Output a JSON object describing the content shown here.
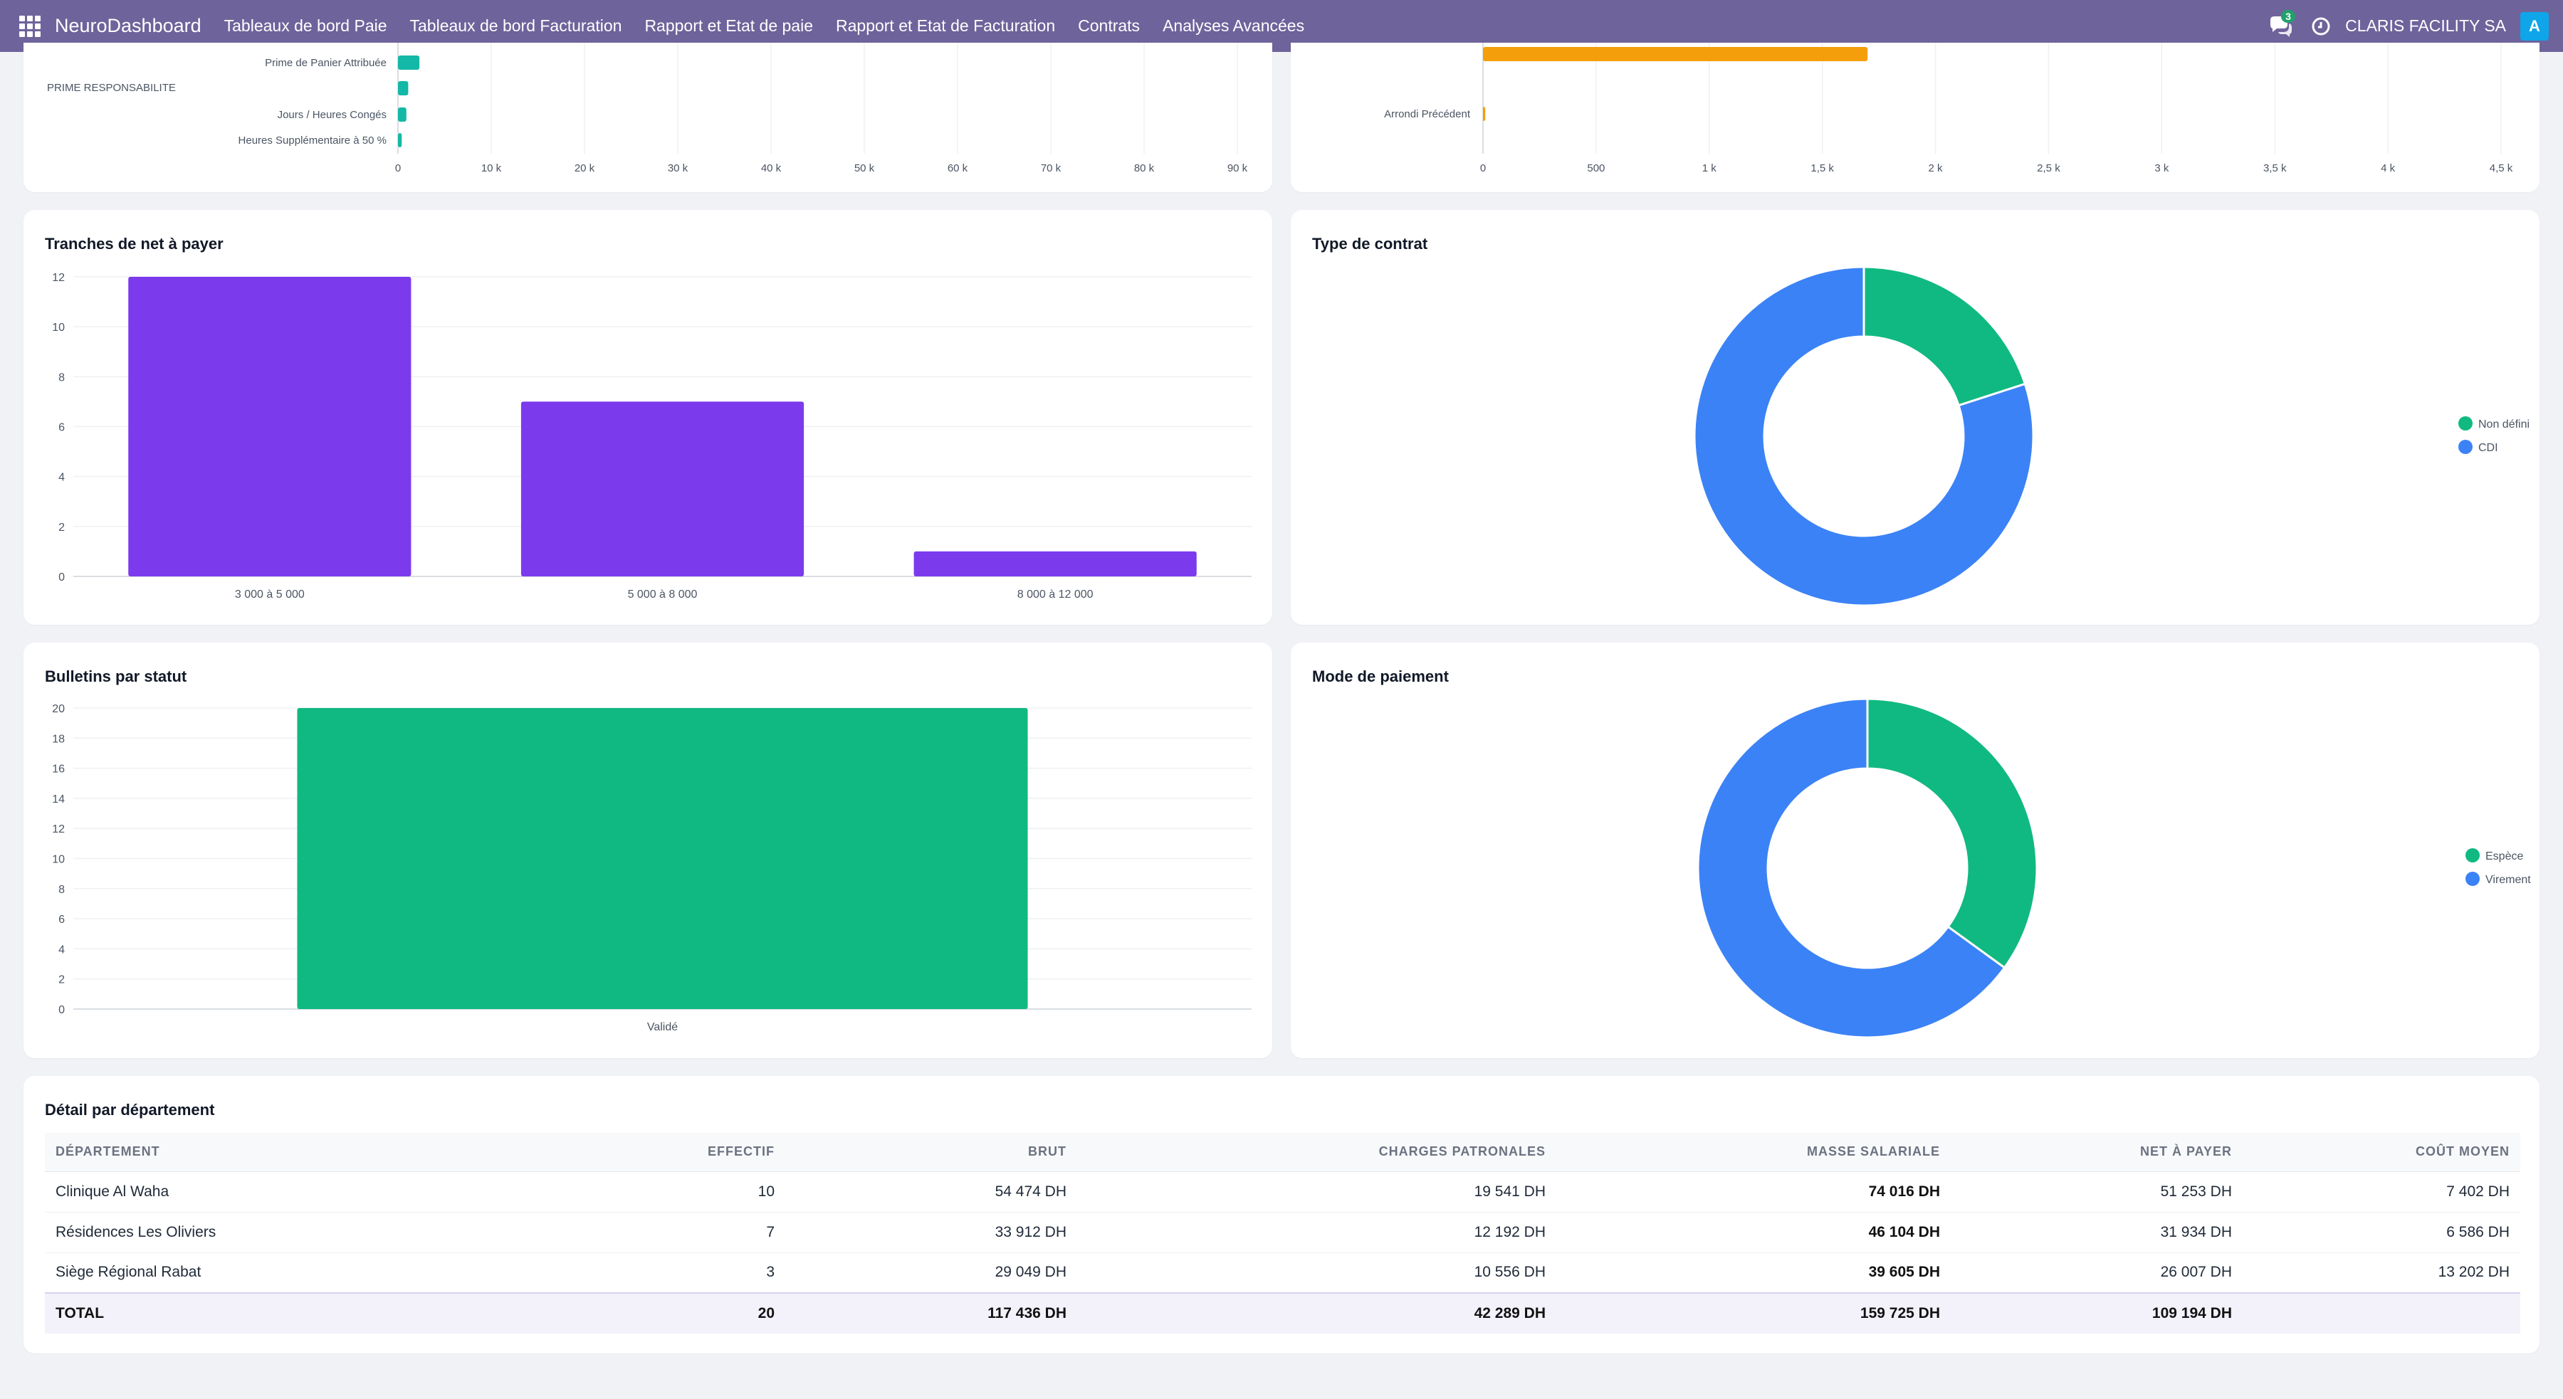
{
  "navbar": {
    "brand": "NeuroDashboard",
    "menus": [
      "Tableaux de bord Paie",
      "Tableaux de bord Facturation",
      "Rapport et Etat de paie",
      "Rapport et Etat de Facturation",
      "Contrats",
      "Analyses Avancées"
    ],
    "notification_count": "3",
    "company": "CLARIS FACILITY SA",
    "avatar_initial": "A"
  },
  "colors": {
    "navbar": "#6f639b",
    "purple_bar": "#7c3aed",
    "green": "#10b981",
    "blue": "#3b82f6",
    "teal": "#14b8a6",
    "orange": "#f59e0b"
  },
  "rubriques_chart": {
    "chart_data": {
      "type": "bar",
      "orientation": "horizontal",
      "categories": [
        "Prime de Panier Attribuée",
        "PRIME RESPONSABILITE",
        "Jours / Heures Congés",
        "Heures Supplémentaire à 50 %"
      ],
      "values": [
        2300,
        1100,
        900,
        400
      ],
      "xlim": [
        0,
        90000
      ],
      "xticks": [
        "0",
        "10 k",
        "20 k",
        "30 k",
        "40 k",
        "50 k",
        "60 k",
        "70 k",
        "80 k",
        "90 k"
      ]
    }
  },
  "arrondi_chart": {
    "chart_data": {
      "type": "bar",
      "orientation": "horizontal",
      "categories": [
        "",
        "Arrondi Précédent"
      ],
      "values": [
        1700,
        10
      ],
      "xlim": [
        0,
        4500
      ],
      "xticks": [
        "0",
        "500",
        "1 k",
        "1,5 k",
        "2 k",
        "2,5 k",
        "3 k",
        "3,5 k",
        "4 k",
        "4,5 k"
      ]
    }
  },
  "tranches": {
    "title": "Tranches de net à payer",
    "chart_data": {
      "type": "bar",
      "categories": [
        "3 000 à 5 000",
        "5 000 à 8 000",
        "8 000 à 12 000"
      ],
      "values": [
        12,
        7,
        1
      ],
      "ylim": [
        0,
        12
      ],
      "yticks": [
        "0",
        "2",
        "4",
        "6",
        "8",
        "10",
        "12"
      ]
    }
  },
  "contrat": {
    "title": "Type de contrat",
    "chart_data": {
      "type": "pie",
      "labels": [
        "Non défini",
        "CDI"
      ],
      "values": [
        4,
        16
      ],
      "colors": [
        "#10b981",
        "#3b82f6"
      ]
    }
  },
  "bulletins": {
    "title": "Bulletins par statut",
    "chart_data": {
      "type": "bar",
      "categories": [
        "Validé"
      ],
      "values": [
        20
      ],
      "ylim": [
        0,
        20
      ],
      "yticks": [
        "0",
        "2",
        "4",
        "6",
        "8",
        "10",
        "12",
        "14",
        "16",
        "18",
        "20"
      ]
    }
  },
  "paiement": {
    "title": "Mode de paiement",
    "chart_data": {
      "type": "pie",
      "labels": [
        "Espèce",
        "Virement"
      ],
      "values": [
        7,
        13
      ],
      "colors": [
        "#10b981",
        "#3b82f6"
      ]
    }
  },
  "departements": {
    "title": "Détail par département",
    "headers": [
      "DÉPARTEMENT",
      "EFFECTIF",
      "BRUT",
      "CHARGES PATRONALES",
      "MASSE SALARIALE",
      "NET À PAYER",
      "COÛT MOYEN"
    ],
    "rows": [
      [
        "Clinique Al Waha",
        "10",
        "54 474 DH",
        "19 541 DH",
        "74 016 DH",
        "51 253 DH",
        "7 402 DH"
      ],
      [
        "Résidences Les Oliviers",
        "7",
        "33 912 DH",
        "12 192 DH",
        "46 104 DH",
        "31 934 DH",
        "6 586 DH"
      ],
      [
        "Siège Régional Rabat",
        "3",
        "29 049 DH",
        "10 556 DH",
        "39 605 DH",
        "26 007 DH",
        "13 202 DH"
      ]
    ],
    "total": [
      "TOTAL",
      "20",
      "117 436 DH",
      "42 289 DH",
      "159 725 DH",
      "109 194 DH",
      ""
    ]
  }
}
